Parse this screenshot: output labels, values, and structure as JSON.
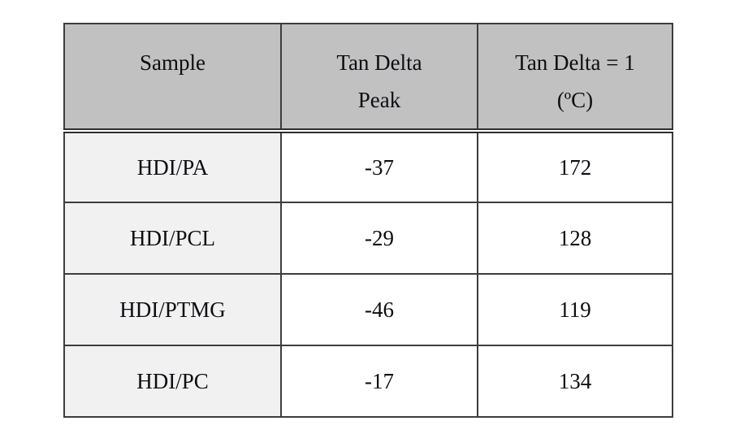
{
  "table": {
    "columns": [
      {
        "label": "Sample",
        "line1": "Sample",
        "line2": ""
      },
      {
        "label": "Tan Delta Peak",
        "line1": "Tan Delta",
        "line2": "Peak"
      },
      {
        "label": "Tan Delta = 1 (ºC)",
        "line1": "Tan Delta = 1",
        "line2": "(ºC)"
      }
    ],
    "rows": [
      {
        "sample": "HDI/PA",
        "tan_delta_peak": "-37",
        "tan_delta_eq_1_c": "172"
      },
      {
        "sample": "HDI/PCL",
        "tan_delta_peak": "-29",
        "tan_delta_eq_1_c": "128"
      },
      {
        "sample": "HDI/PTMG",
        "tan_delta_peak": "-46",
        "tan_delta_eq_1_c": "119"
      },
      {
        "sample": "HDI/PC",
        "tan_delta_peak": "-17",
        "tan_delta_eq_1_c": "134"
      }
    ],
    "styles": {
      "header_bg": "#c1c1c1",
      "sample_column_bg": "#f1f1f1",
      "cell_bg": "#ffffff",
      "grid_line": "#3d3d3d",
      "outer_border": "#1d1d1d",
      "text_color": "#0d0d12"
    }
  }
}
